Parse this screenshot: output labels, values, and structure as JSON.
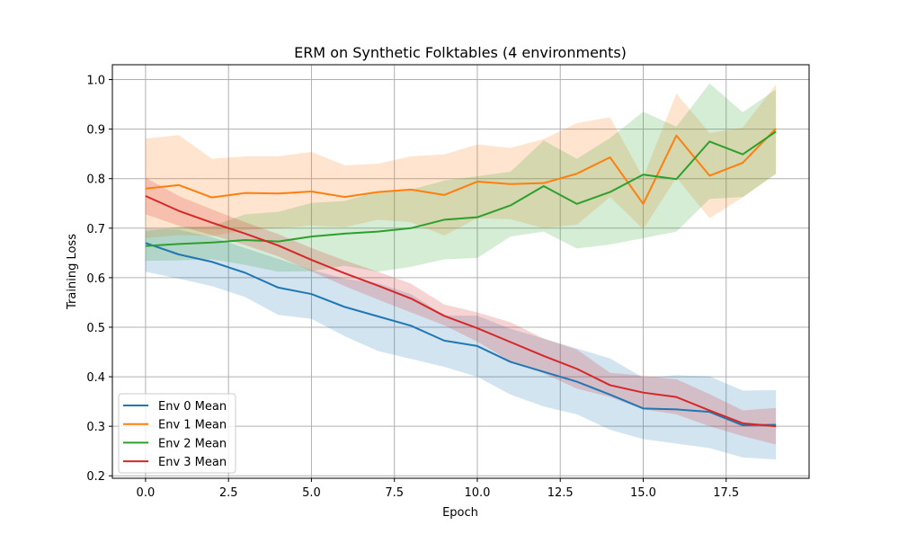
{
  "chart_data": {
    "type": "line",
    "title": "ERM on Synthetic Folktables (4 environments)",
    "xlabel": "Epoch",
    "ylabel": "Training Loss",
    "xlim": [
      -1,
      20
    ],
    "ylim": [
      0.195,
      1.03
    ],
    "grid": true,
    "legend_position": "lower-left",
    "x_ticks": [
      0.0,
      2.5,
      5.0,
      7.5,
      10.0,
      12.5,
      15.0,
      17.5
    ],
    "x_tick_labels": [
      "0.0",
      "2.5",
      "5.0",
      "7.5",
      "10.0",
      "12.5",
      "15.0",
      "17.5"
    ],
    "y_ticks": [
      0.2,
      0.3,
      0.4,
      0.5,
      0.6,
      0.7,
      0.8,
      0.9,
      1.0
    ],
    "y_tick_labels": [
      "0.2",
      "0.3",
      "0.4",
      "0.5",
      "0.6",
      "0.7",
      "0.8",
      "0.9",
      "1.0"
    ],
    "x": [
      0,
      1,
      2,
      3,
      4,
      5,
      6,
      7,
      8,
      9,
      10,
      11,
      12,
      13,
      14,
      15,
      16,
      17,
      18,
      19
    ],
    "series": [
      {
        "name": "Env 0 Mean",
        "color": "#1f77b4",
        "values": [
          0.67,
          0.647,
          0.632,
          0.61,
          0.58,
          0.567,
          0.541,
          0.522,
          0.503,
          0.473,
          0.462,
          0.43,
          0.41,
          0.39,
          0.364,
          0.336,
          0.334,
          0.329,
          0.302,
          0.303
        ],
        "lower": [
          0.612,
          0.598,
          0.583,
          0.561,
          0.525,
          0.517,
          0.482,
          0.452,
          0.436,
          0.42,
          0.4,
          0.364,
          0.34,
          0.324,
          0.293,
          0.274,
          0.265,
          0.256,
          0.237,
          0.233
        ],
        "upper": [
          0.7,
          0.697,
          0.682,
          0.66,
          0.638,
          0.616,
          0.598,
          0.589,
          0.567,
          0.524,
          0.523,
          0.497,
          0.477,
          0.457,
          0.437,
          0.398,
          0.403,
          0.401,
          0.372,
          0.373
        ]
      },
      {
        "name": "Env 1 Mean",
        "color": "#ff7f0e",
        "values": [
          0.78,
          0.787,
          0.762,
          0.771,
          0.77,
          0.774,
          0.763,
          0.773,
          0.778,
          0.767,
          0.794,
          0.789,
          0.791,
          0.81,
          0.843,
          0.749,
          0.887,
          0.806,
          0.832,
          0.901
        ],
        "lower": [
          0.68,
          0.686,
          0.684,
          0.696,
          0.7,
          0.705,
          0.702,
          0.717,
          0.712,
          0.685,
          0.72,
          0.718,
          0.7,
          0.707,
          0.763,
          0.698,
          0.802,
          0.72,
          0.762,
          0.81
        ],
        "upper": [
          0.881,
          0.888,
          0.84,
          0.845,
          0.845,
          0.854,
          0.827,
          0.83,
          0.845,
          0.849,
          0.869,
          0.862,
          0.88,
          0.912,
          0.924,
          0.802,
          0.972,
          0.892,
          0.903,
          0.99
        ]
      },
      {
        "name": "Env 2 Mean",
        "color": "#2ca02c",
        "values": [
          0.664,
          0.668,
          0.671,
          0.676,
          0.673,
          0.683,
          0.689,
          0.693,
          0.7,
          0.717,
          0.722,
          0.746,
          0.785,
          0.749,
          0.773,
          0.808,
          0.799,
          0.875,
          0.849,
          0.895
        ],
        "lower": [
          0.634,
          0.635,
          0.637,
          0.626,
          0.612,
          0.613,
          0.624,
          0.612,
          0.622,
          0.637,
          0.64,
          0.683,
          0.693,
          0.659,
          0.667,
          0.68,
          0.693,
          0.759,
          0.763,
          0.81
        ],
        "upper": [
          0.694,
          0.703,
          0.704,
          0.728,
          0.733,
          0.751,
          0.755,
          0.774,
          0.778,
          0.796,
          0.805,
          0.814,
          0.877,
          0.84,
          0.882,
          0.935,
          0.905,
          0.992,
          0.934,
          0.98
        ]
      },
      {
        "name": "Env 3 Mean",
        "color": "#d62728",
        "values": [
          0.765,
          0.735,
          0.711,
          0.689,
          0.665,
          0.636,
          0.609,
          0.584,
          0.558,
          0.523,
          0.498,
          0.47,
          0.442,
          0.416,
          0.383,
          0.368,
          0.359,
          0.332,
          0.306,
          0.3
        ],
        "lower": [
          0.728,
          0.705,
          0.686,
          0.666,
          0.643,
          0.613,
          0.583,
          0.556,
          0.53,
          0.504,
          0.471,
          0.431,
          0.407,
          0.376,
          0.359,
          0.334,
          0.324,
          0.3,
          0.28,
          0.263
        ],
        "upper": [
          0.802,
          0.765,
          0.738,
          0.712,
          0.688,
          0.66,
          0.635,
          0.612,
          0.588,
          0.546,
          0.53,
          0.51,
          0.477,
          0.455,
          0.408,
          0.402,
          0.395,
          0.365,
          0.332,
          0.337
        ]
      }
    ]
  }
}
